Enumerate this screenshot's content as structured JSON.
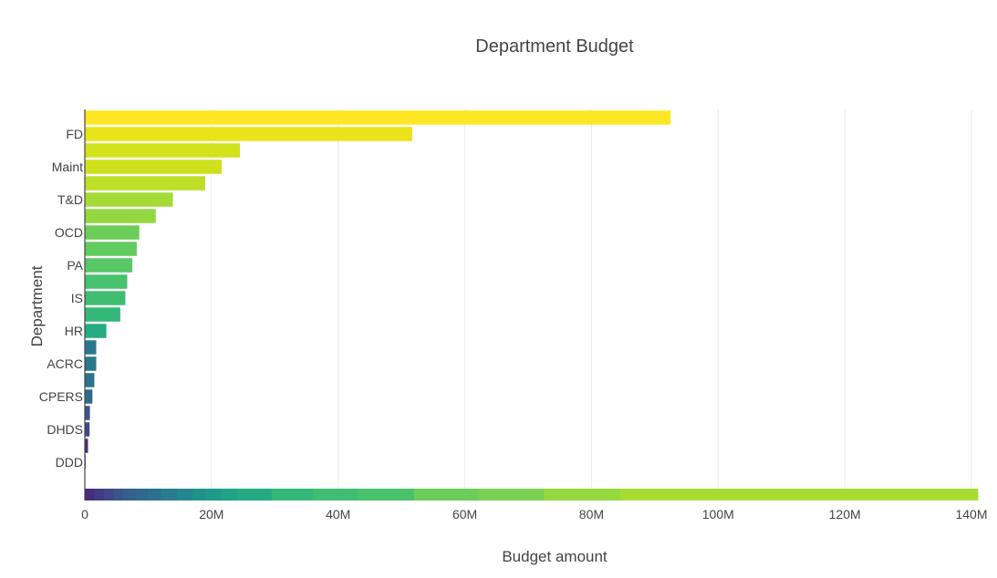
{
  "chart_data": {
    "type": "bar",
    "orientation": "horizontal",
    "title": "Department Budget",
    "xlabel": "Budget amount",
    "ylabel": "Department",
    "xlim": [
      0,
      140000000
    ],
    "x_ticks": [
      0,
      20000000,
      40000000,
      60000000,
      80000000,
      100000000,
      120000000,
      140000000
    ],
    "x_tick_labels": [
      "0",
      "20M",
      "40M",
      "60M",
      "80M",
      "100M",
      "120M",
      "140M"
    ],
    "grid": "vertical",
    "colorscale": "viridis",
    "categories": [
      "",
      "FD",
      "",
      "Maint",
      "",
      "T&D",
      "",
      "OCD",
      "",
      "PA",
      "",
      "IS",
      "",
      "HR",
      "",
      "ACRC",
      "",
      "CPERS",
      "",
      "DHDS",
      "",
      "DDD"
    ],
    "values": [
      92500000,
      51700000,
      24500000,
      21600000,
      19000000,
      13900000,
      11200000,
      8600000,
      8200000,
      7500000,
      6700000,
      6400000,
      5600000,
      3400000,
      1800000,
      1800000,
      1500000,
      1200000,
      800000,
      750000,
      500000,
      100000
    ],
    "colors": [
      "#fde725",
      "#e8e419",
      "#d2e21b",
      "#cde11d",
      "#bddf26",
      "#a5db36",
      "#93d741",
      "#6ccd5a",
      "#62cb5f",
      "#58c765",
      "#48c16e",
      "#40bd72",
      "#35b779",
      "#25ab82",
      "#2a788e",
      "#2a788e",
      "#2c728e",
      "#31688e",
      "#3b528b",
      "#3e4a89",
      "#46327e",
      "#440154"
    ],
    "colorbar": {
      "breaks": [
        0,
        1500000,
        3000000,
        4500000,
        6000000,
        8000000,
        10000000,
        12000000,
        14500000,
        17000000,
        19000000,
        21500000,
        24000000,
        29500000,
        36000000,
        43000000,
        52000000,
        62000000,
        72500000,
        84500000,
        141000000
      ],
      "colors": [
        "#472d7b",
        "#443a83",
        "#3f4788",
        "#3b528b",
        "#355f8d",
        "#31688e",
        "#2c728e",
        "#287c8e",
        "#24868e",
        "#21918c",
        "#1f9a8a",
        "#20a386",
        "#25ab82",
        "#35b779",
        "#40bd72",
        "#4ac16d",
        "#6ccd5a",
        "#7ad151",
        "#95d840",
        "#a8db34",
        "#f4e61e"
      ]
    }
  }
}
